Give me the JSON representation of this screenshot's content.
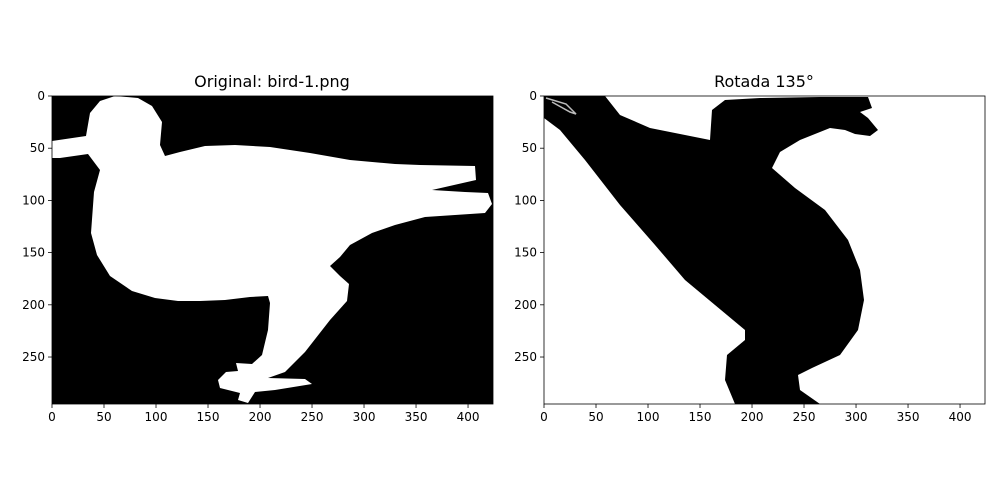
{
  "chart_data": [
    {
      "type": "image",
      "title": "Original: bird-1.png",
      "xlim": [
        0,
        424
      ],
      "ylim": [
        295,
        0
      ],
      "xticks": [
        0,
        50,
        100,
        150,
        200,
        250,
        300,
        350,
        400
      ],
      "yticks": [
        0,
        50,
        100,
        150,
        200,
        250
      ],
      "colormap": "gray",
      "background_color": "#000000",
      "foreground_color": "#ffffff",
      "content": "silhouette"
    },
    {
      "type": "image",
      "title": "Rotada 135°",
      "xlim": [
        0,
        424
      ],
      "ylim": [
        295,
        0
      ],
      "xticks": [
        0,
        50,
        100,
        150,
        200,
        250,
        300,
        350,
        400
      ],
      "yticks": [
        0,
        50,
        100,
        150,
        200,
        250
      ],
      "colormap": "gray",
      "background_color": "#ffffff",
      "foreground_color": "#000000",
      "content": "silhouette"
    }
  ]
}
